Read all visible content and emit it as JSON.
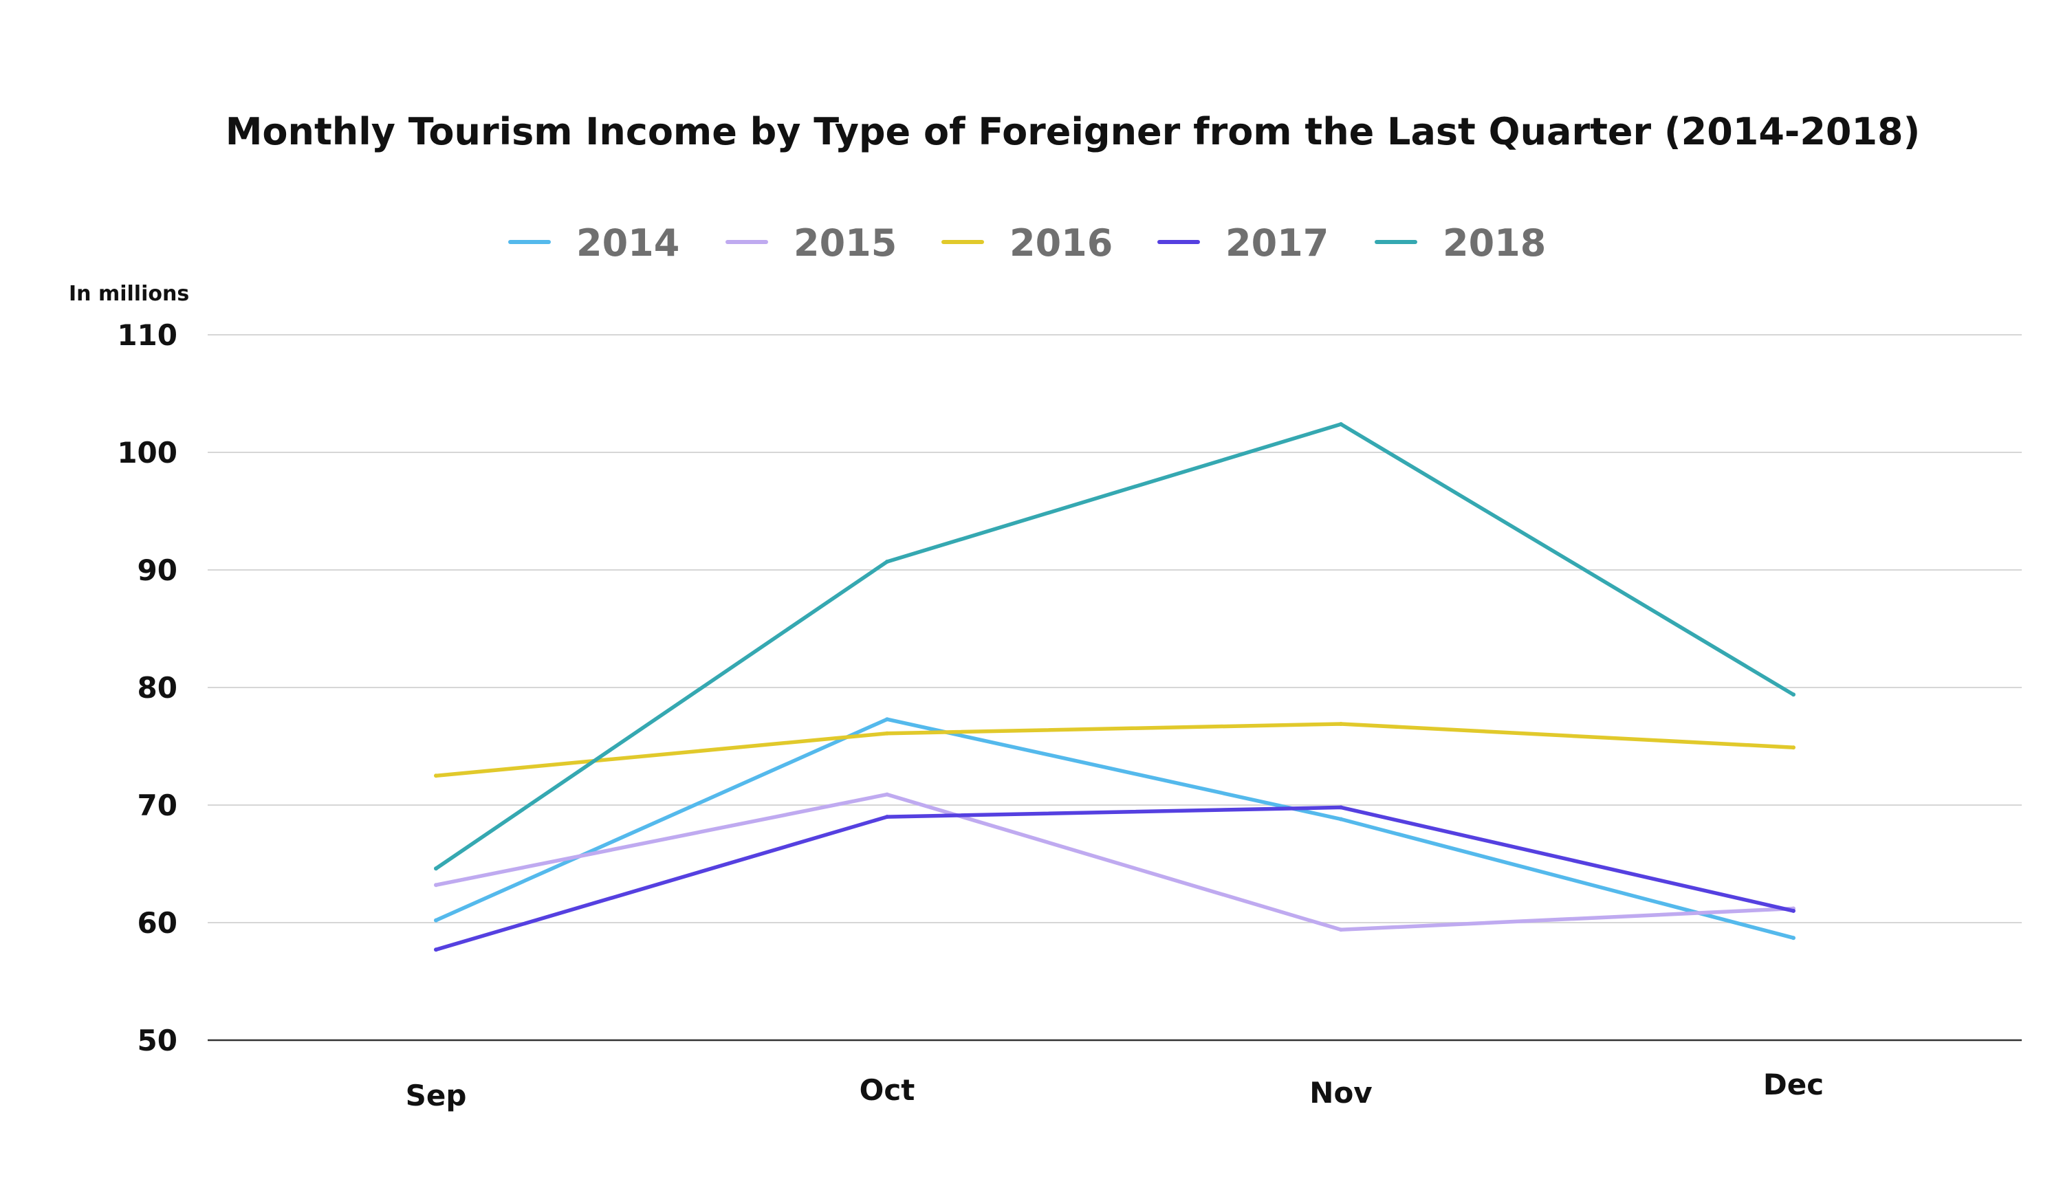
{
  "chart_data": {
    "type": "line",
    "title": "Monthly Tourism Income by Type of Foreigner from the Last Quarter (2014-2018)",
    "unit_label": "In millions",
    "xlabel": "",
    "ylabel": "",
    "categories": [
      "Sep",
      "Oct",
      "Nov",
      "Dec"
    ],
    "ylim": [
      50,
      110
    ],
    "yticks": [
      50,
      60,
      70,
      80,
      90,
      100,
      110
    ],
    "grid": true,
    "legend_position": "top-center",
    "series": [
      {
        "name": "2014",
        "color": "#54b9ec",
        "values": [
          60.2,
          77.3,
          68.8,
          58.7
        ]
      },
      {
        "name": "2015",
        "color": "#bfaaf0",
        "values": [
          63.2,
          70.9,
          59.4,
          61.2
        ]
      },
      {
        "name": "2016",
        "color": "#e1c92b",
        "values": [
          72.5,
          76.1,
          76.9,
          74.9
        ]
      },
      {
        "name": "2017",
        "color": "#5540e0",
        "values": [
          57.7,
          69.0,
          69.8,
          61.0
        ]
      },
      {
        "name": "2018",
        "color": "#35a8b1",
        "values": [
          64.6,
          90.7,
          102.4,
          79.4
        ]
      }
    ]
  }
}
